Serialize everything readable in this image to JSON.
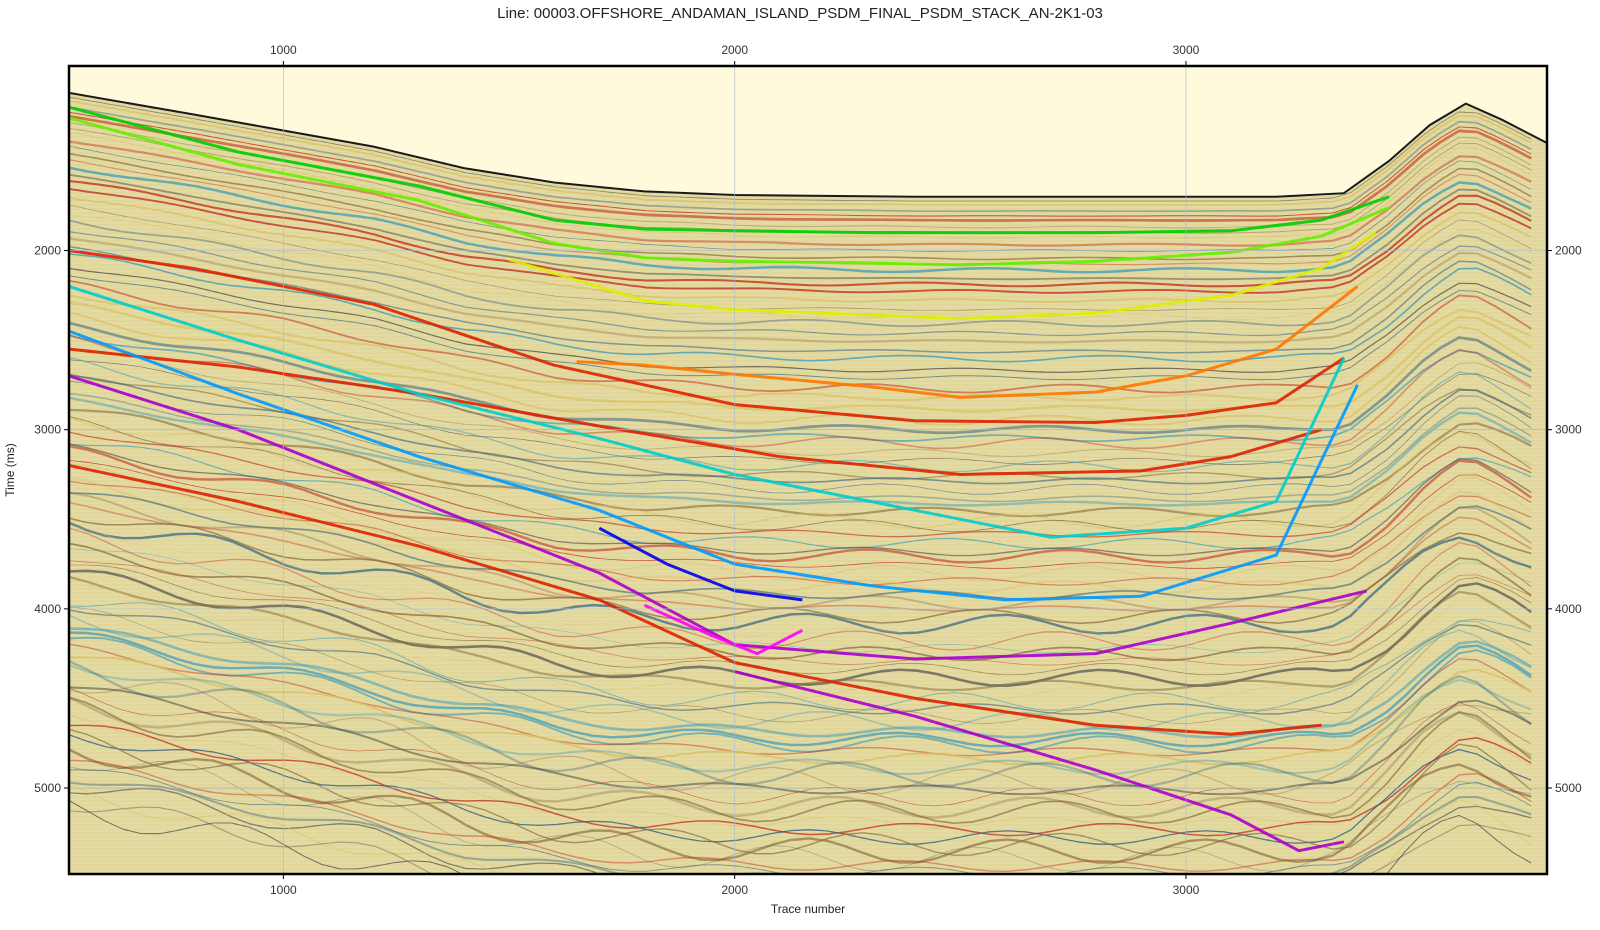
{
  "title": "Line: 00003.OFFSHORE_ANDAMAN_ISLAND_PSDM_FINAL_PSDM_STACK_AN-2K1-03",
  "axes": {
    "xlabel": "Trace number",
    "ylabel": "Time  (ms)",
    "xrange": [
      525,
      3800
    ],
    "yrange": [
      970,
      5480
    ],
    "xticks": [
      1000,
      2000,
      3000
    ],
    "yticks": [
      2000,
      3000,
      4000,
      5000
    ]
  },
  "colors": {
    "background": "#fffadc",
    "gridline": "#aabbcc",
    "frame": "#000000",
    "horizon_palette": [
      "#00cc00",
      "#aaff00",
      "#ffee00",
      "#ff7700",
      "#dd2200",
      "#00dddd",
      "#0099ff",
      "#0000ee",
      "#aa00cc",
      "#ff00ff"
    ]
  },
  "seafloor_profile": {
    "trace": [
      525,
      800,
      1000,
      1200,
      1400,
      1600,
      1800,
      2000,
      2200,
      2400,
      2600,
      2800,
      3000,
      3200,
      3350,
      3450,
      3540,
      3620,
      3700,
      3800
    ],
    "time_ms": [
      1120,
      1240,
      1330,
      1420,
      1540,
      1620,
      1670,
      1690,
      1695,
      1700,
      1700,
      1700,
      1700,
      1700,
      1680,
      1500,
      1300,
      1180,
      1270,
      1400
    ]
  },
  "horizons": [
    {
      "color": "#00cc00",
      "trace": [
        525,
        900,
        1300,
        1600,
        1800,
        2000,
        2300,
        2500,
        2800,
        3100,
        3300,
        3450
      ],
      "time_ms": [
        1200,
        1450,
        1640,
        1830,
        1880,
        1890,
        1900,
        1900,
        1900,
        1890,
        1830,
        1700
      ]
    },
    {
      "color": "#66ee00",
      "trace": [
        525,
        900,
        1300,
        1600,
        1800,
        2000,
        2300,
        2500,
        2800,
        3100,
        3300,
        3450
      ],
      "time_ms": [
        1260,
        1520,
        1720,
        1960,
        2040,
        2060,
        2070,
        2080,
        2060,
        2010,
        1920,
        1760
      ]
    },
    {
      "color": "#ddee00",
      "trace": [
        1500,
        1800,
        2000,
        2300,
        2500,
        2800,
        3100,
        3300,
        3420
      ],
      "time_ms": [
        2050,
        2280,
        2330,
        2360,
        2380,
        2350,
        2250,
        2100,
        1900
      ]
    },
    {
      "color": "#ff7700",
      "trace": [
        1650,
        1800,
        2000,
        2300,
        2500,
        2800,
        3000,
        3200,
        3380
      ],
      "time_ms": [
        2620,
        2640,
        2690,
        2760,
        2820,
        2790,
        2700,
        2550,
        2200
      ]
    },
    {
      "color": "#dd2200",
      "trace": [
        525,
        800,
        1200,
        1600,
        2000,
        2400,
        2800,
        3000,
        3200,
        3350
      ],
      "time_ms": [
        2000,
        2100,
        2300,
        2640,
        2860,
        2950,
        2960,
        2920,
        2850,
        2600
      ]
    },
    {
      "color": "#dd2200",
      "trace": [
        525,
        900,
        1300,
        1700,
        2100,
        2500,
        2900,
        3100,
        3300
      ],
      "time_ms": [
        2550,
        2650,
        2800,
        2980,
        3150,
        3250,
        3230,
        3150,
        3000
      ]
    },
    {
      "color": "#00cccc",
      "trace": [
        525,
        900,
        1300,
        1700,
        2000,
        2400,
        2700,
        3000,
        3200,
        3350
      ],
      "time_ms": [
        2200,
        2500,
        2800,
        3050,
        3250,
        3450,
        3600,
        3550,
        3400,
        2600
      ]
    },
    {
      "color": "#0099ff",
      "trace": [
        525,
        900,
        1300,
        1700,
        2000,
        2300,
        2600,
        2900,
        3200,
        3380
      ],
      "time_ms": [
        2450,
        2800,
        3150,
        3450,
        3750,
        3870,
        3950,
        3930,
        3700,
        2750
      ]
    },
    {
      "color": "#0000ee",
      "trace": [
        1700,
        1850,
        2000,
        2150
      ],
      "time_ms": [
        3550,
        3750,
        3900,
        3950
      ]
    },
    {
      "color": "#aa00cc",
      "trace": [
        525,
        900,
        1300,
        1700,
        2000,
        2400,
        2800,
        3100,
        3400
      ],
      "time_ms": [
        2700,
        3000,
        3400,
        3800,
        4200,
        4280,
        4250,
        4080,
        3900
      ]
    },
    {
      "color": "#ff00ff",
      "trace": [
        1800,
        1950,
        2050,
        2150
      ],
      "time_ms": [
        3980,
        4150,
        4250,
        4120
      ]
    },
    {
      "color": "#dd2200",
      "trace": [
        525,
        900,
        1300,
        1700,
        2000,
        2400,
        2800,
        3100,
        3300
      ],
      "time_ms": [
        3200,
        3400,
        3650,
        3950,
        4300,
        4500,
        4650,
        4700,
        4650
      ]
    },
    {
      "color": "#aa00cc",
      "trace": [
        2000,
        2400,
        2800,
        3100,
        3250,
        3350
      ],
      "time_ms": [
        4350,
        4600,
        4900,
        5150,
        5350,
        5300
      ]
    }
  ]
}
